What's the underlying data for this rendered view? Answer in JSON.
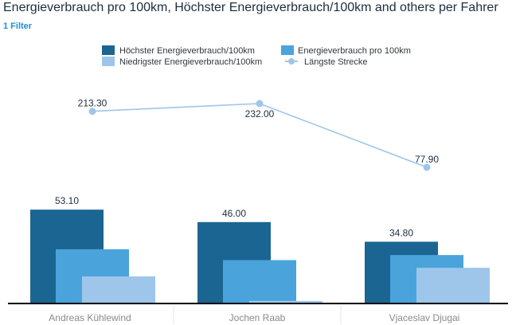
{
  "header": {
    "title": "Energieverbrauch pro 100km, Höchster Energieverbrauch/100km and others per Fahrer",
    "filter_label": "1 Filter"
  },
  "colors": {
    "hoechster": "#1b6592",
    "pro100": "#4ba3db",
    "niedrigster": "#9dc6ea",
    "laengste": "#9dc6ea"
  },
  "chart_data": {
    "type": "bar",
    "categories": [
      "Andreas Kühlewind",
      "Jochen Raab",
      "Vjaceslav Djugai"
    ],
    "series": [
      {
        "name": "Höchster Energieverbrauch/100km",
        "type": "bar",
        "values": [
          53.1,
          46.0,
          34.8
        ],
        "value_labels": [
          "53.10",
          "46.00",
          "34.80"
        ]
      },
      {
        "name": "Energieverbrauch pro 100km",
        "type": "bar",
        "values": [
          30.5,
          24.3,
          27.2
        ]
      },
      {
        "name": "Niedrigster Energieverbrauch/100km",
        "type": "bar",
        "values": [
          15.0,
          1.0,
          19.9
        ]
      },
      {
        "name": "Längste Strecke",
        "type": "line",
        "values": [
          213.3,
          232.0,
          77.9
        ],
        "value_labels": [
          "213.30",
          "232.00",
          "77.90"
        ]
      }
    ],
    "legend_position": "top"
  }
}
